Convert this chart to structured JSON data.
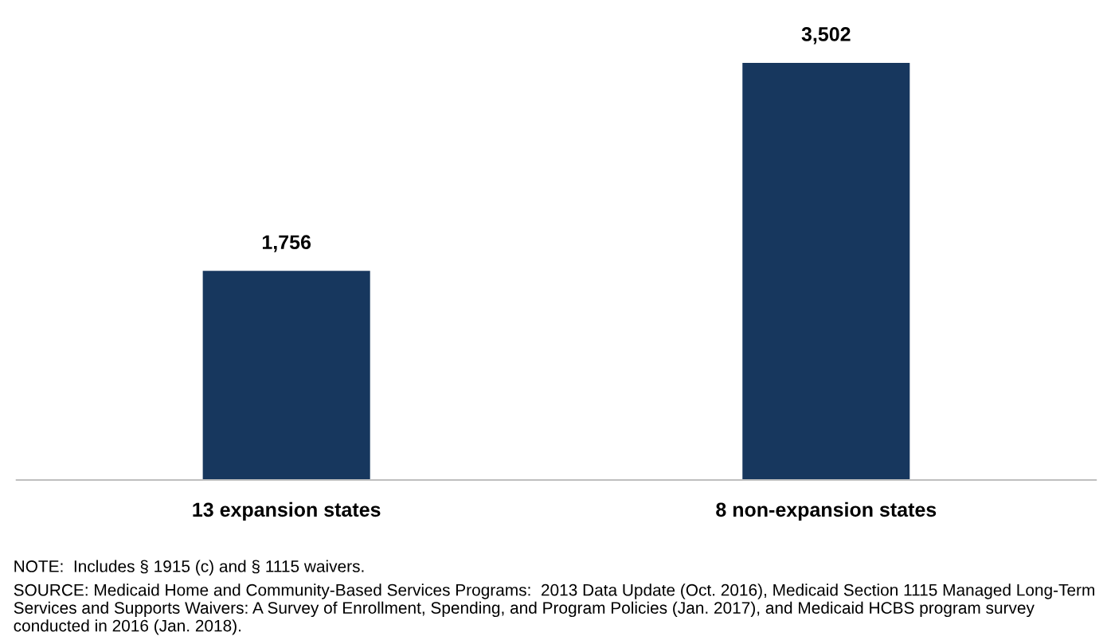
{
  "chart_data": {
    "type": "bar",
    "categories": [
      "13 expansion states",
      "8 non-expansion states"
    ],
    "values": [
      1756,
      3502
    ],
    "color": "#17375e",
    "data_labels": true,
    "value_labels": [
      "1,756",
      "3,502"
    ],
    "grid": false,
    "legend": false,
    "annotations": [
      "NOTE:  Includes § 1915 (c) and § 1115 waivers.",
      "SOURCE: Medicaid Home and Community-Based Services Programs:  2013 Data Update (Oct. 2016), Medicaid Section 1115 Managed Long-Term Services and Supports Waivers: A Survey of Enrollment, Spending, and Program Policies (Jan. 2017), and Medicaid HCBS program survey conducted in 2016 (Jan. 2018)."
    ]
  }
}
